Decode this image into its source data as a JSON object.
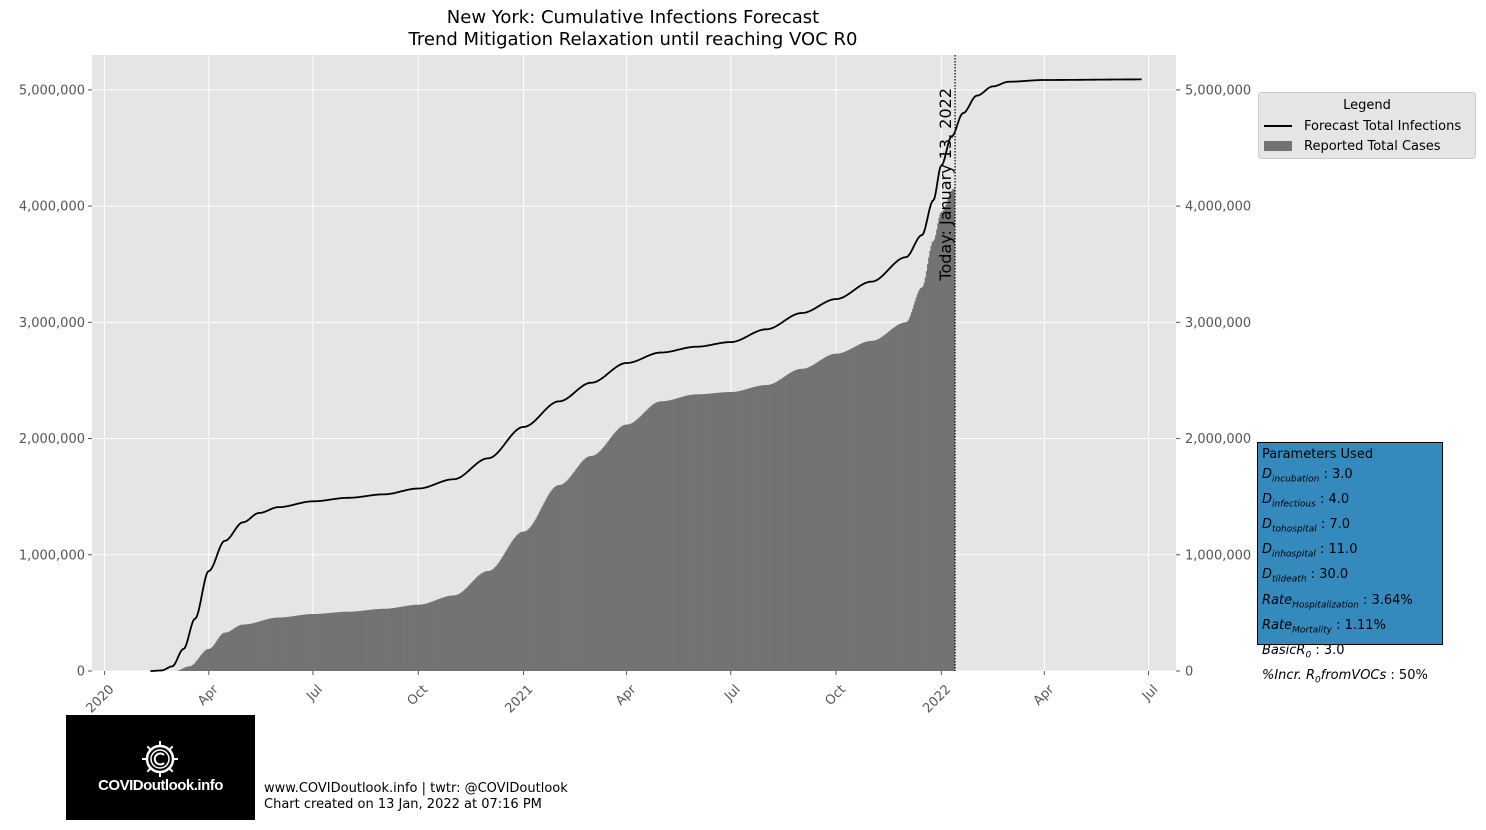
{
  "chart_data": {
    "type": "line",
    "title": "New York: Cumulative Infections Forecast",
    "subtitle": "Trend Mitigation Relaxation until reaching VOC R0",
    "xlabel": "",
    "ylabel": "",
    "x_ticks": [
      "2020",
      "Apr",
      "Jul",
      "Oct",
      "2021",
      "Apr",
      "Jul",
      "Oct",
      "2022",
      "Apr",
      "Jul"
    ],
    "y_ticks": [
      "0",
      "1,000,000",
      "2,000,000",
      "3,000,000",
      "4,000,000",
      "5,000,000"
    ],
    "ylim": [
      0,
      5300000
    ],
    "xlim": [
      "2019-12-21",
      "2022-07-25"
    ],
    "grid": true,
    "legend_placement": "outside right top",
    "series": [
      {
        "name": "Forecast Total Infections",
        "type": "line",
        "color": "#000000",
        "points": [
          [
            "2020-02-10",
            0
          ],
          [
            "2020-02-20",
            5000
          ],
          [
            "2020-02-29",
            40000
          ],
          [
            "2020-03-10",
            190000
          ],
          [
            "2020-03-20",
            450000
          ],
          [
            "2020-04-01",
            860000
          ],
          [
            "2020-04-15",
            1120000
          ],
          [
            "2020-05-01",
            1280000
          ],
          [
            "2020-05-15",
            1360000
          ],
          [
            "2020-06-01",
            1410000
          ],
          [
            "2020-07-01",
            1460000
          ],
          [
            "2020-08-01",
            1490000
          ],
          [
            "2020-09-01",
            1520000
          ],
          [
            "2020-10-01",
            1570000
          ],
          [
            "2020-11-01",
            1650000
          ],
          [
            "2020-12-01",
            1830000
          ],
          [
            "2021-01-01",
            2100000
          ],
          [
            "2021-02-01",
            2320000
          ],
          [
            "2021-03-01",
            2480000
          ],
          [
            "2021-04-01",
            2650000
          ],
          [
            "2021-05-01",
            2740000
          ],
          [
            "2021-06-01",
            2790000
          ],
          [
            "2021-07-01",
            2830000
          ],
          [
            "2021-08-01",
            2940000
          ],
          [
            "2021-09-01",
            3080000
          ],
          [
            "2021-10-01",
            3200000
          ],
          [
            "2021-11-01",
            3350000
          ],
          [
            "2021-12-01",
            3560000
          ],
          [
            "2021-12-15",
            3750000
          ],
          [
            "2021-12-25",
            4050000
          ],
          [
            "2022-01-01",
            4350000
          ],
          [
            "2022-01-10",
            4600000
          ],
          [
            "2022-01-20",
            4800000
          ],
          [
            "2022-02-01",
            4950000
          ],
          [
            "2022-02-15",
            5030000
          ],
          [
            "2022-03-01",
            5070000
          ],
          [
            "2022-04-01",
            5085000
          ],
          [
            "2022-06-25",
            5090000
          ]
        ]
      },
      {
        "name": "Reported Total Cases",
        "type": "bar",
        "color": "#737373",
        "points": [
          [
            "2020-03-03",
            0
          ],
          [
            "2020-03-15",
            40000
          ],
          [
            "2020-04-01",
            190000
          ],
          [
            "2020-04-15",
            330000
          ],
          [
            "2020-05-01",
            400000
          ],
          [
            "2020-06-01",
            460000
          ],
          [
            "2020-07-01",
            490000
          ],
          [
            "2020-08-01",
            510000
          ],
          [
            "2020-09-01",
            535000
          ],
          [
            "2020-10-01",
            570000
          ],
          [
            "2020-11-01",
            650000
          ],
          [
            "2020-12-01",
            860000
          ],
          [
            "2021-01-01",
            1200000
          ],
          [
            "2021-02-01",
            1600000
          ],
          [
            "2021-03-01",
            1850000
          ],
          [
            "2021-04-01",
            2120000
          ],
          [
            "2021-05-01",
            2320000
          ],
          [
            "2021-06-01",
            2380000
          ],
          [
            "2021-07-01",
            2400000
          ],
          [
            "2021-08-01",
            2460000
          ],
          [
            "2021-09-01",
            2600000
          ],
          [
            "2021-10-01",
            2730000
          ],
          [
            "2021-11-01",
            2840000
          ],
          [
            "2021-12-01",
            3000000
          ],
          [
            "2021-12-15",
            3300000
          ],
          [
            "2021-12-25",
            3700000
          ],
          [
            "2022-01-01",
            3950000
          ],
          [
            "2022-01-12",
            4150000
          ]
        ]
      }
    ],
    "annotations": [
      {
        "text": "Today: January 13, 2022",
        "x": "2022-01-13",
        "style": "dotted vertical line"
      }
    ],
    "right_y_ticks": [
      "0",
      "1,000,000",
      "2,000,000",
      "3,000,000",
      "4,000,000",
      "5,000,000"
    ]
  },
  "colors": {
    "plot_background": "#e5e5e5",
    "grid": "#ffffff",
    "forecast_line": "#000000",
    "reported_bars": "#737373",
    "params_box": "#348abd",
    "tick_text": "#555555"
  },
  "legend": {
    "title": "Legend",
    "items": [
      {
        "label": "Forecast Total Infections",
        "symbol": "line"
      },
      {
        "label": "Reported Total Cases",
        "symbol": "patch"
      }
    ]
  },
  "parameters": {
    "title": "Parameters Used",
    "rows": [
      {
        "sym": "D",
        "sub": "incubation",
        "value": "3.0"
      },
      {
        "sym": "D",
        "sub": "infectious",
        "value": "4.0"
      },
      {
        "sym": "D",
        "sub": "tohospital",
        "value": "7.0"
      },
      {
        "sym": "D",
        "sub": "inhospital",
        "value": "11.0"
      },
      {
        "sym": "D",
        "sub": "tildeath",
        "value": "30.0"
      },
      {
        "sym": "Rate",
        "sub": "Hospitalization",
        "value": "3.64%"
      },
      {
        "sym": "Rate",
        "sub": "Mortality",
        "value": "1.11%"
      },
      {
        "sym": "BasicR",
        "sub": "0",
        "value": "3.0"
      },
      {
        "sym": "%Incr. R",
        "sub": "0",
        "suffix": "fromVOCs",
        "value": "50%"
      }
    ]
  },
  "logo": {
    "text": "COVIDoutlook.info"
  },
  "footer": {
    "line1": "www.COVIDoutlook.info | twtr: @COVIDoutlook",
    "line2": "Chart created on 13 Jan, 2022 at 07:16 PM"
  }
}
